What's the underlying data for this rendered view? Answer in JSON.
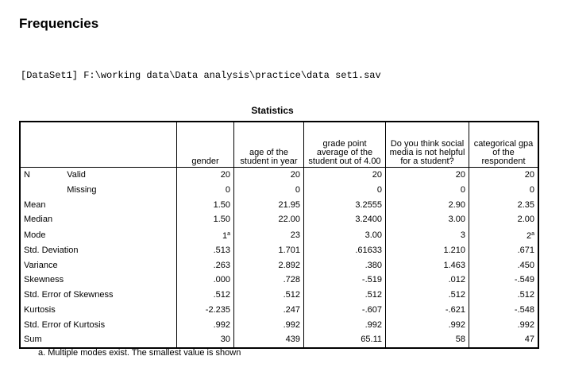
{
  "title": "Frequencies",
  "dataset": "[DataSet1] F:\\working data\\Data analysis\\practice\\data set1.sav",
  "table": {
    "caption": "Statistics",
    "columns": [
      "gender",
      "age of the student in year",
      "grade point average of the student out of 4.00",
      "Do you think social media is not helpful for a student?",
      "categorical gpa of the respondent"
    ],
    "rows": [
      {
        "l1": "N",
        "l2": "Valid",
        "v": [
          "20",
          "20",
          "20",
          "20",
          "20"
        ]
      },
      {
        "l1": "",
        "l2": "Missing",
        "v": [
          "0",
          "0",
          "0",
          "0",
          "0"
        ]
      },
      {
        "l1": "Mean",
        "l2": "",
        "v": [
          "1.50",
          "21.95",
          "3.2555",
          "2.90",
          "2.35"
        ]
      },
      {
        "l1": "Median",
        "l2": "",
        "v": [
          "1.50",
          "22.00",
          "3.2400",
          "3.00",
          "2.00"
        ]
      },
      {
        "l1": "Mode",
        "l2": "",
        "v": [
          "1",
          "23",
          "3.00",
          "3",
          "2"
        ],
        "sup": [
          "a",
          "",
          "",
          "",
          "a"
        ]
      },
      {
        "l1": "Std. Deviation",
        "l2": "",
        "v": [
          ".513",
          "1.701",
          ".61633",
          "1.210",
          ".671"
        ]
      },
      {
        "l1": "Variance",
        "l2": "",
        "v": [
          ".263",
          "2.892",
          ".380",
          "1.463",
          ".450"
        ]
      },
      {
        "l1": "Skewness",
        "l2": "",
        "v": [
          ".000",
          ".728",
          "-.519",
          ".012",
          "-.549"
        ]
      },
      {
        "l1": "Std. Error of Skewness",
        "l2": "",
        "v": [
          ".512",
          ".512",
          ".512",
          ".512",
          ".512"
        ]
      },
      {
        "l1": "Kurtosis",
        "l2": "",
        "v": [
          "-2.235",
          ".247",
          "-.607",
          "-.621",
          "-.548"
        ]
      },
      {
        "l1": "Std. Error of Kurtosis",
        "l2": "",
        "v": [
          ".992",
          ".992",
          ".992",
          ".992",
          ".992"
        ]
      },
      {
        "l1": "Sum",
        "l2": "",
        "v": [
          "30",
          "439",
          "65.11",
          "58",
          "47"
        ]
      }
    ],
    "footnote": "a. Multiple modes exist. The smallest value is shown"
  }
}
